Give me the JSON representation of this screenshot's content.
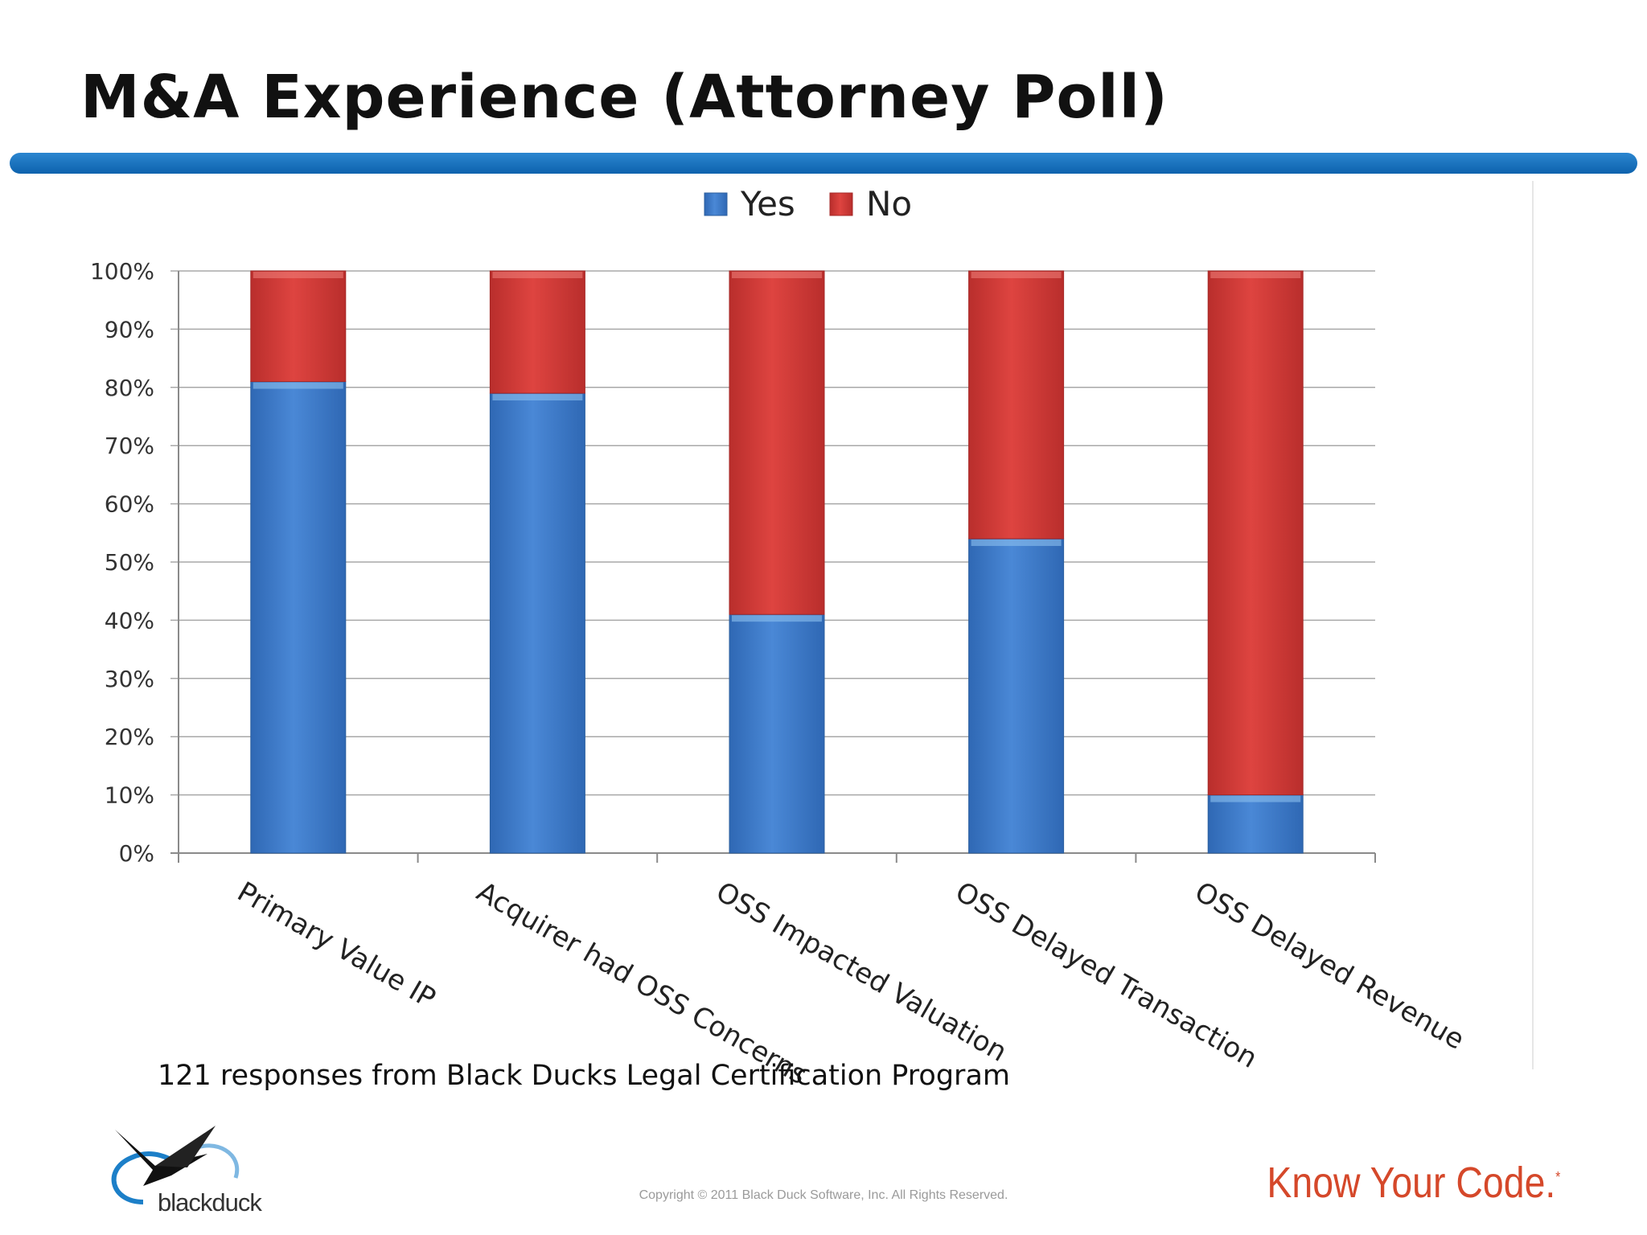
{
  "slide": {
    "title": "M&A Experience (Attorney Poll)",
    "footnote": "121 responses from Black Ducks Legal Certification Program",
    "copyright": "Copyright © 2011 Black Duck Software, Inc.  All Rights Reserved.",
    "tagline": "Know Your Code.",
    "tagline_mark": "*",
    "logo_text": "blackduck",
    "accent_color": "#0d62ad",
    "tagline_color": "#d5482a"
  },
  "chart_data": {
    "type": "bar",
    "stacked": true,
    "percent": true,
    "categories": [
      "Primary Value IP",
      "Acquirer had OSS Concerns",
      "OSS Impacted Valuation",
      "OSS Delayed Transaction",
      "OSS Delayed Revenue"
    ],
    "series": [
      {
        "name": "Yes",
        "color": "#3a78c8",
        "values": [
          81,
          79,
          41,
          54,
          10
        ]
      },
      {
        "name": "No",
        "color": "#d13a36",
        "values": [
          19,
          21,
          59,
          46,
          90
        ]
      }
    ],
    "y_ticks": [
      "0%",
      "10%",
      "20%",
      "30%",
      "40%",
      "50%",
      "60%",
      "70%",
      "80%",
      "90%",
      "100%"
    ],
    "ylim": [
      0,
      100
    ],
    "grid": true,
    "legend_position": "top"
  }
}
